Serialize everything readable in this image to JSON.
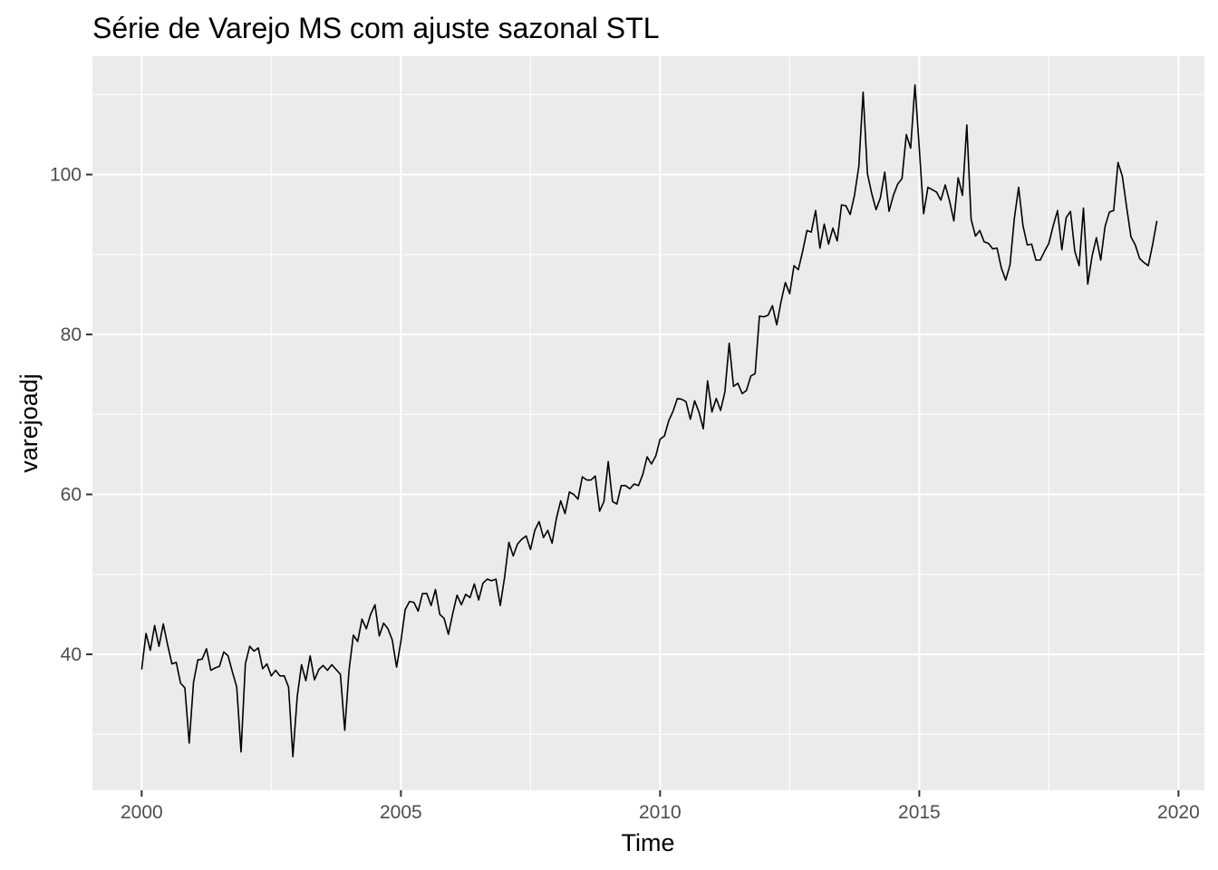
{
  "chart_data": {
    "type": "line",
    "title": "Série de Varejo MS com ajuste sazonal STL",
    "xlabel": "Time",
    "ylabel": "varejoadj",
    "xlim": [
      1999.05,
      2020.5
    ],
    "ylim": [
      23.0,
      114.8
    ],
    "x_ticks": [
      2000,
      2005,
      2010,
      2015,
      2020
    ],
    "y_ticks": [
      40,
      60,
      80,
      100
    ],
    "x_tick_labels": [
      "2000",
      "2005",
      "2010",
      "2015",
      "2020"
    ],
    "y_tick_labels": [
      "40",
      "60",
      "80",
      "100"
    ],
    "grid": true,
    "panel_color": "#ebebeb",
    "grid_color": "#ffffff",
    "line_color": "#000000",
    "series": [
      {
        "x_start": 2000,
        "frequency": 12,
        "values": [
          38.1,
          42.6,
          40.5,
          43.6,
          41.0,
          43.8,
          41.2,
          38.8,
          39.0,
          36.4,
          35.8,
          28.9,
          36.5,
          39.3,
          39.4,
          40.7,
          38.0,
          38.3,
          38.5,
          40.3,
          39.8,
          37.8,
          35.9,
          27.8,
          38.8,
          41.0,
          40.4,
          40.8,
          38.2,
          38.8,
          37.3,
          38.0,
          37.3,
          37.3,
          35.9,
          27.2,
          34.7,
          38.7,
          36.7,
          39.8,
          36.8,
          38.1,
          38.6,
          38.0,
          38.7,
          38.1,
          37.5,
          30.5,
          38.0,
          42.4,
          41.6,
          44.4,
          43.2,
          45.0,
          46.2,
          42.3,
          43.9,
          43.2,
          41.8,
          38.4,
          41.6,
          45.6,
          46.6,
          46.5,
          45.4,
          47.6,
          47.6,
          46.1,
          48.1,
          45.0,
          44.5,
          42.5,
          45.1,
          47.4,
          46.2,
          47.5,
          47.1,
          48.8,
          46.8,
          48.9,
          49.4,
          49.2,
          49.4,
          46.1,
          49.6,
          54.0,
          52.3,
          53.8,
          54.4,
          54.8,
          53.1,
          55.5,
          56.6,
          54.6,
          55.5,
          53.9,
          57.0,
          59.2,
          57.6,
          60.3,
          60.0,
          59.4,
          62.2,
          61.8,
          61.8,
          62.3,
          57.9,
          59.1,
          64.1,
          59.1,
          58.8,
          61.1,
          61.1,
          60.7,
          61.3,
          61.1,
          62.5,
          64.7,
          63.8,
          64.8,
          66.9,
          67.3,
          69.2,
          70.4,
          72.0,
          71.9,
          71.6,
          69.4,
          71.7,
          70.3,
          68.2,
          74.2,
          70.3,
          72.0,
          70.5,
          72.8,
          78.9,
          73.5,
          73.9,
          72.6,
          73.0,
          74.8,
          75.1,
          82.3,
          82.2,
          82.4,
          83.6,
          81.2,
          84.1,
          86.5,
          85.1,
          88.6,
          88.1,
          90.4,
          93.0,
          92.8,
          95.5,
          90.8,
          93.8,
          91.3,
          93.3,
          91.7,
          96.2,
          96.1,
          95.0,
          97.4,
          101.0,
          110.3,
          100.1,
          97.6,
          95.6,
          97.1,
          100.3,
          95.4,
          97.4,
          98.8,
          99.5,
          105.0,
          103.3,
          111.2,
          103.3,
          95.1,
          98.4,
          98.1,
          97.8,
          96.8,
          98.7,
          96.7,
          94.2,
          99.6,
          97.4,
          106.2,
          94.4,
          92.3,
          93.0,
          91.6,
          91.4,
          90.7,
          90.8,
          88.3,
          86.8,
          88.7,
          94.5,
          98.4,
          93.6,
          91.2,
          91.3,
          89.3,
          89.3,
          90.4,
          91.4,
          93.6,
          95.5,
          90.6,
          94.6,
          95.4,
          90.4,
          88.6,
          95.8,
          86.3,
          89.8,
          92.1,
          89.3,
          93.5,
          95.3,
          95.5,
          101.5,
          99.8,
          95.9,
          92.2,
          91.2,
          89.5,
          89.0,
          88.6,
          91.2,
          94.2
        ]
      }
    ]
  }
}
